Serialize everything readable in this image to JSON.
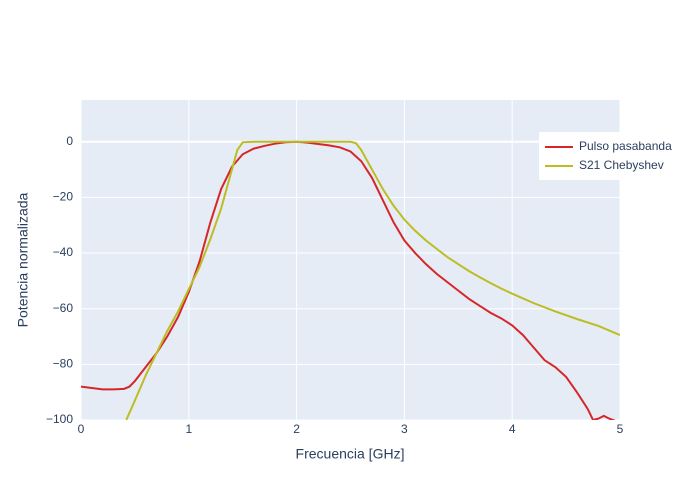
{
  "chart_data": {
    "type": "line",
    "xlabel": "Frecuencia [GHz]",
    "ylabel": "Potencia normalizada",
    "xlim": [
      0,
      5
    ],
    "ylim": [
      -100,
      15
    ],
    "xticks": [
      0,
      1,
      2,
      3,
      4,
      5
    ],
    "yticks": [
      {
        "value": -100,
        "label": "−100"
      },
      {
        "value": -80,
        "label": "−80"
      },
      {
        "value": -60,
        "label": "−60"
      },
      {
        "value": -40,
        "label": "−40"
      },
      {
        "value": -20,
        "label": "−20"
      },
      0
    ],
    "grid": true,
    "legend": "top-right-outside",
    "series": [
      {
        "name": "Pulso pasabanda",
        "color": "#d62728",
        "x": [
          0,
          0.1,
          0.2,
          0.3,
          0.4,
          0.45,
          0.5,
          0.6,
          0.7,
          0.8,
          0.9,
          1.0,
          1.1,
          1.2,
          1.3,
          1.4,
          1.5,
          1.6,
          1.7,
          1.8,
          1.9,
          2.0,
          2.1,
          2.2,
          2.3,
          2.4,
          2.5,
          2.6,
          2.7,
          2.8,
          2.9,
          3.0,
          3.1,
          3.2,
          3.3,
          3.4,
          3.5,
          3.6,
          3.7,
          3.8,
          3.9,
          4.0,
          4.1,
          4.2,
          4.3,
          4.4,
          4.5,
          4.6,
          4.7,
          4.75,
          4.8,
          4.85,
          4.9,
          5.0
        ],
        "values": [
          -88,
          -88.5,
          -89,
          -89,
          -88.8,
          -88,
          -86,
          -81,
          -76,
          -70,
          -63,
          -54,
          -43,
          -29,
          -17,
          -9,
          -4.5,
          -2.5,
          -1.5,
          -0.7,
          -0.2,
          0,
          -0.3,
          -0.8,
          -1.3,
          -2,
          -3.5,
          -7,
          -13,
          -21,
          -29,
          -35.5,
          -40,
          -44,
          -47.5,
          -50.5,
          -53.5,
          -56.5,
          -59,
          -61.5,
          -63.5,
          -66,
          -69.5,
          -74,
          -78.5,
          -81,
          -84.5,
          -90,
          -96,
          -100,
          -99.5,
          -98.5,
          -99.5,
          -101
        ]
      },
      {
        "name": "S21 Chebyshev",
        "color": "#bcbd22",
        "x": [
          0.42,
          0.5,
          0.6,
          0.7,
          0.8,
          0.9,
          1.0,
          1.1,
          1.2,
          1.3,
          1.4,
          1.45,
          1.5,
          1.6,
          1.8,
          2.0,
          2.2,
          2.4,
          2.5,
          2.55,
          2.6,
          2.7,
          2.8,
          2.9,
          3.0,
          3.1,
          3.2,
          3.3,
          3.4,
          3.5,
          3.6,
          3.7,
          3.8,
          3.9,
          4.0,
          4.2,
          4.4,
          4.6,
          4.8,
          5.0
        ],
        "values": [
          -100,
          -93,
          -84,
          -76,
          -68,
          -61,
          -53,
          -45,
          -35,
          -24,
          -10,
          -3,
          -0.2,
          0,
          0,
          0,
          0,
          0,
          0,
          -0.5,
          -3,
          -10,
          -17,
          -23,
          -28,
          -32,
          -35.5,
          -38.5,
          -41.5,
          -44,
          -46.5,
          -48.7,
          -50.8,
          -52.8,
          -54.6,
          -58,
          -61,
          -63.7,
          -66.2,
          -69.5
        ]
      }
    ]
  }
}
